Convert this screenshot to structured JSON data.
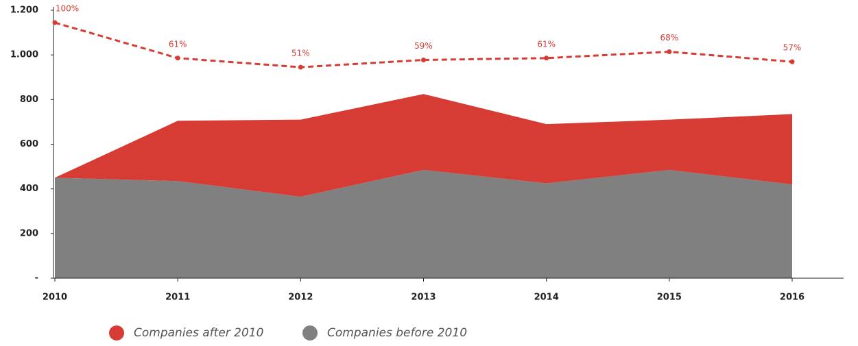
{
  "chart_data": {
    "type": "area",
    "categories": [
      "2010",
      "2011",
      "2012",
      "2013",
      "2014",
      "2015",
      "2016"
    ],
    "series": [
      {
        "name": "Companies after 2010",
        "color": "#d63c33",
        "values": [
          0,
          270,
          345,
          340,
          265,
          225,
          315
        ]
      },
      {
        "name": "Companies before 2010",
        "color": "#808080",
        "values": [
          450,
          435,
          365,
          485,
          425,
          485,
          420
        ]
      },
      {
        "type": "line",
        "axis": "y2",
        "color": "#d63c33",
        "dashed": true,
        "values": [
          100,
          61,
          51,
          59,
          61,
          68,
          57
        ],
        "value_labels": [
          "100%",
          "61%",
          "51%",
          "59%",
          "61%",
          "68%",
          "57%"
        ]
      }
    ],
    "stacked": true,
    "ylim": [
      0,
      1200
    ],
    "yticks": [
      {
        "value": 0,
        "label": "-"
      },
      200,
      400,
      600,
      800,
      {
        "value": 1000,
        "label": "1.000"
      },
      {
        "value": 1200,
        "label": "1.200"
      }
    ],
    "y2lim": [
      -181,
      113.6
    ],
    "legend": "bottom-left"
  }
}
